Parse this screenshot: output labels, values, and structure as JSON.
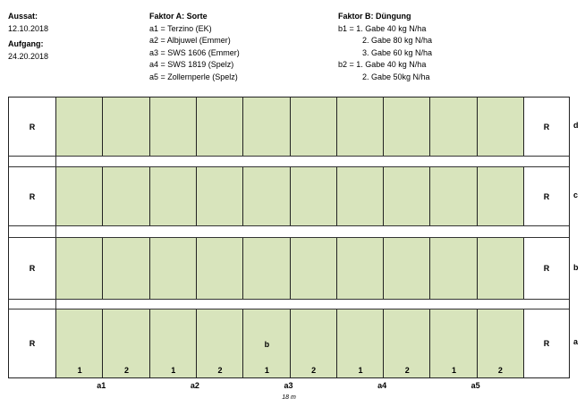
{
  "header": {
    "aussaat_label": "Aussat:",
    "aussaat_date": "12.10.2018",
    "aufgang_label": "Aufgang:",
    "aufgang_date": "24.20.2018",
    "factor_a": {
      "title": "Faktor A: Sorte",
      "items": [
        "a1 = Terzino (EK)",
        "a2 = Albjuwel (Emmer)",
        "a3 = SWS 1606 (Emmer)",
        "a4 = SWS 1819 (Spelz)",
        "a5 = Zollernperle (Spelz)"
      ]
    },
    "factor_b": {
      "title": "Faktor B: Düngung",
      "lines": [
        "b1 = 1. Gabe 40 kg N/ha",
        "2. Gabe 80 kg N/ha",
        "3. Gabe 60 kg N/ha",
        "b2 = 1. Gabe 40 kg N/ha",
        "2. Gabe 50kg N/ha"
      ]
    }
  },
  "field": {
    "border_label": "R",
    "plot_color": "#d8e4bc",
    "rows": [
      {
        "letter": "d"
      },
      {
        "letter": "c"
      },
      {
        "letter": "b"
      },
      {
        "letter": "a",
        "center_label": "b",
        "center_label_plot": 5,
        "plot_numbers": [
          "1",
          "2",
          "1",
          "2",
          "1",
          "2",
          "1",
          "2",
          "1",
          "2"
        ]
      }
    ],
    "variety_labels": [
      "a1",
      "a2",
      "a3",
      "a4",
      "a5"
    ],
    "width_label": "18 m"
  }
}
